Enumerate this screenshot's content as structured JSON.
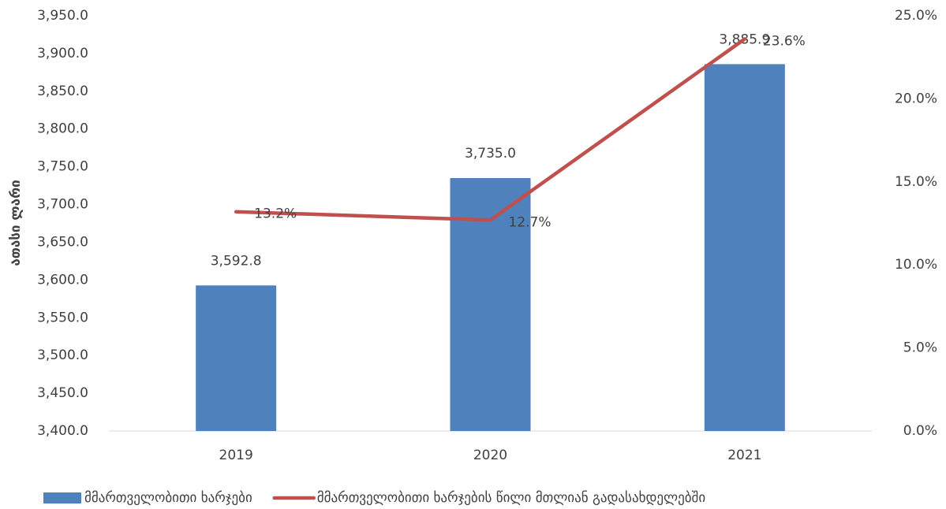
{
  "chart_data": {
    "type": "bar",
    "y_label": "ათასი ლარი",
    "categories": [
      "2019",
      "2020",
      "2021"
    ],
    "series": [
      {
        "name": "მმართველობითი ხარჯები",
        "type": "bar",
        "color": "#4f81bd",
        "values": [
          3592.8,
          3735.0,
          3885.9
        ],
        "value_labels": [
          "3,592.8",
          "3,735.0",
          "3,885.9"
        ]
      },
      {
        "name": "მმართველობითი ხარჯების წილი მთლიან გადასახდელებში",
        "type": "line",
        "axis": "y2",
        "color": "#c0504d",
        "values": [
          13.2,
          12.7,
          23.6
        ],
        "value_labels": [
          "13.2%",
          "12.7%",
          "23.6%"
        ]
      }
    ],
    "ylim": [
      3400,
      3950
    ],
    "yticks": [
      {
        "value": 3400,
        "label": "3,400.0"
      },
      {
        "value": 3450,
        "label": "3,450.0"
      },
      {
        "value": 3500,
        "label": "3,500.0"
      },
      {
        "value": 3550,
        "label": "3,550.0"
      },
      {
        "value": 3600,
        "label": "3,600.0"
      },
      {
        "value": 3650,
        "label": "3,650.0"
      },
      {
        "value": 3700,
        "label": "3,700.0"
      },
      {
        "value": 3750,
        "label": "3,750.0"
      },
      {
        "value": 3800,
        "label": "3,800.0"
      },
      {
        "value": 3850,
        "label": "3,850.0"
      },
      {
        "value": 3900,
        "label": "3,900.0"
      },
      {
        "value": 3950,
        "label": "3,950.0"
      }
    ],
    "y2lim": [
      0,
      25
    ],
    "y2ticks": [
      {
        "value": 0,
        "label": "0.0%"
      },
      {
        "value": 5,
        "label": "5.0%"
      },
      {
        "value": 10,
        "label": "10.0%"
      },
      {
        "value": 15,
        "label": "15.0%"
      },
      {
        "value": 20,
        "label": "20.0%"
      },
      {
        "value": 25,
        "label": "25.0%"
      }
    ],
    "legend": "bottom",
    "grid": false
  }
}
